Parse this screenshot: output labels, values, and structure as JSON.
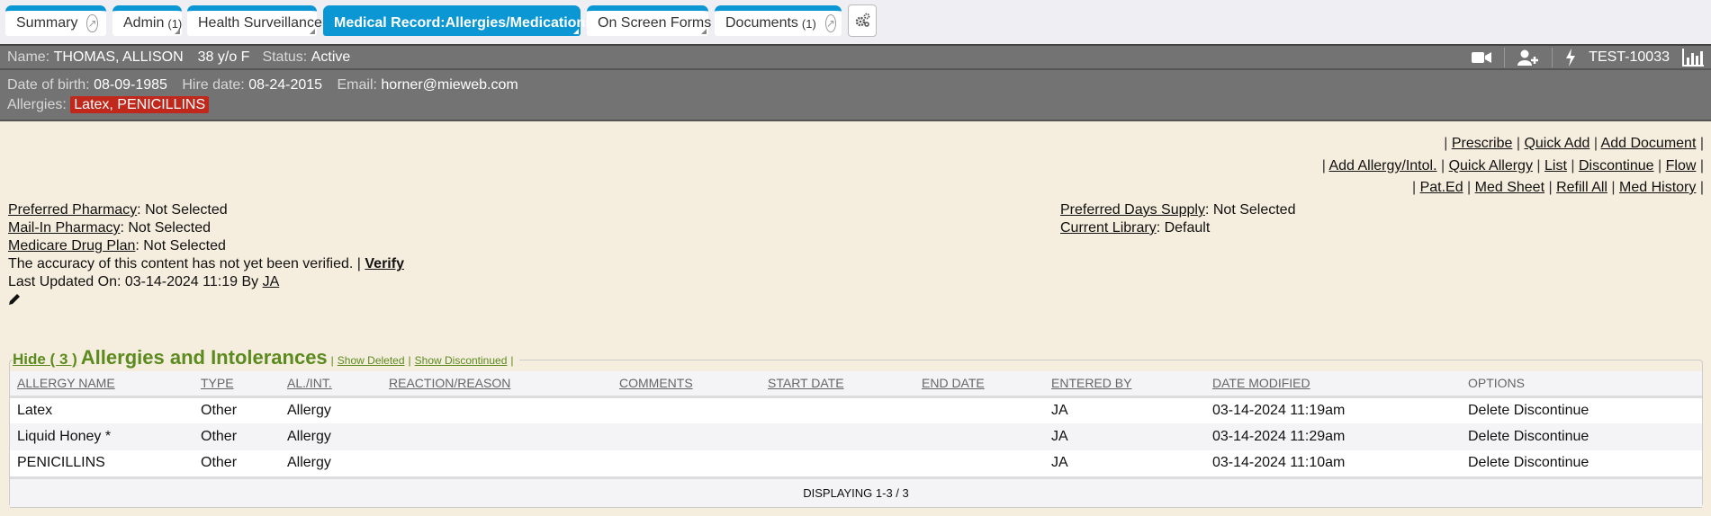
{
  "tabs": [
    {
      "label": "Summary",
      "count": "",
      "ext": true
    },
    {
      "label": "Admin",
      "count": "(1)",
      "ext": false
    },
    {
      "label": "Health Surveillance",
      "count": "",
      "ext": false
    },
    {
      "label": "Medical Record:Allergies/Medications",
      "count": "",
      "ext": false,
      "active": true
    },
    {
      "label": "On Screen Forms",
      "count": "",
      "ext": false
    },
    {
      "label": "Documents",
      "count": "(1)",
      "ext": true
    }
  ],
  "patient": {
    "name_label": "Name:",
    "name": "THOMAS, ALLISON",
    "age": "38 y/o F",
    "status_label": "Status:",
    "status": "Active",
    "dob_label": "Date of birth:",
    "dob": "08-09-1985",
    "hire_label": "Hire date:",
    "hire": "08-24-2015",
    "email_label": "Email:",
    "email": "horner@mieweb.com",
    "allergies_label": "Allergies:",
    "allergies": "Latex, PENICILLINS",
    "id": "TEST-10033"
  },
  "actions": {
    "row1": [
      "Prescribe",
      "Quick Add",
      "Add Document"
    ],
    "row2": [
      "Add Allergy/Intol.",
      "Quick Allergy",
      "List",
      "Discontinue",
      "Flow"
    ],
    "row3": [
      "Pat.Ed",
      "Med Sheet",
      "Refill All",
      "Med History"
    ]
  },
  "info": {
    "preferred_pharmacy_label": "Preferred Pharmacy",
    "preferred_pharmacy": ": Not Selected",
    "mail_in_label": "Mail-In Pharmacy",
    "mail_in": ": Not Selected",
    "medicare_label": "Medicare Drug Plan",
    "medicare": ": Not Selected",
    "accuracy": "The accuracy of this content has not yet been verified. | ",
    "verify": "Verify",
    "last_updated": "Last Updated On: 03-14-2024 11:19 By ",
    "last_by": "JA",
    "days_supply_label": "Preferred Days Supply",
    "days_supply": ": Not Selected",
    "library_label": "Current Library",
    "library": ": Default"
  },
  "allergies_section": {
    "hide": "Hide ( 3 )",
    "title": "Allergies and Intolerances",
    "show_deleted": "Show Deleted",
    "show_discontinued": "Show Discontinued",
    "columns": [
      "ALLERGY NAME",
      "TYPE",
      "AL./INT.",
      "REACTION/REASON",
      "COMMENTS",
      "START DATE",
      "END DATE",
      "ENTERED BY",
      "DATE MODIFIED",
      "OPTIONS"
    ],
    "rows": [
      [
        "Latex",
        "Other",
        "Allergy",
        "",
        "",
        "",
        "",
        "JA",
        "03-14-2024 11:19am"
      ],
      [
        "Liquid Honey *",
        "Other",
        "Allergy",
        "",
        "",
        "",
        "",
        "JA",
        "03-14-2024 11:29am"
      ],
      [
        "PENICILLINS",
        "Other",
        "Allergy",
        "",
        "",
        "",
        "",
        "JA",
        "03-14-2024 11:10am"
      ]
    ],
    "option_delete": "Delete",
    "option_discontinue": "Discontinue",
    "footer": "DISPLAYING 1-3 / 3"
  },
  "colors": {
    "tab_accent": "#0a97d4",
    "header_bg": "#737373",
    "allergy_badge": "#c0281c",
    "section_green": "#5b8a1e",
    "page_bg": "#f5eddd"
  }
}
